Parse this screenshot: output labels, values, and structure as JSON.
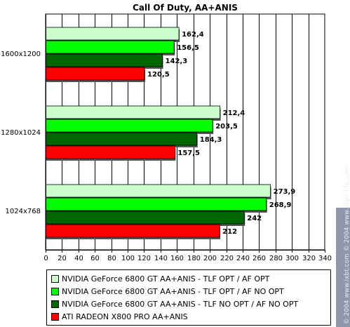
{
  "chart_data": {
    "type": "bar",
    "orientation": "horizontal",
    "title": "Call Of Duty, AA+ANIS",
    "categories": [
      "1600x1200",
      "1280x1024",
      "1024x768"
    ],
    "series": [
      {
        "name": "NVIDIA GeForce 6800 GT AA+ANIS - TLF OPT / AF OPT",
        "values": [
          162.4,
          212.4,
          273.9
        ],
        "labels": [
          "162,4",
          "212,4",
          "273,9"
        ],
        "color": "#ccffcc"
      },
      {
        "name": "NVIDIA GeForce 6800 GT AA+ANIS - TLF OPT / AF NO OPT",
        "values": [
          156.5,
          203.5,
          268.9
        ],
        "labels": [
          "156,5",
          "203,5",
          "268,9"
        ],
        "color": "#00ff00"
      },
      {
        "name": "NVIDIA GeForce 6800 GT AA+ANIS - TLF NO OPT / AF NO OPT",
        "values": [
          142.3,
          184.3,
          242
        ],
        "labels": [
          "142,3",
          "184,3",
          "242"
        ],
        "color": "#006600"
      },
      {
        "name": "ATI RADEON X800 PRO AA+ANIS",
        "values": [
          120.5,
          157.5,
          212
        ],
        "labels": [
          "120,5",
          "157,5",
          "212"
        ],
        "color": "#ff0000"
      }
    ],
    "xlim": [
      0,
      340
    ],
    "xticks": [
      "0",
      "20",
      "40",
      "60",
      "80",
      "100",
      "120",
      "140",
      "160",
      "180",
      "200",
      "220",
      "240",
      "260",
      "280",
      "300",
      "320",
      "340"
    ],
    "grid": true,
    "legend_position": "bottom"
  },
  "watermark": "© 2004 www.ixbt.com   © 2004 www.digit-life.com"
}
